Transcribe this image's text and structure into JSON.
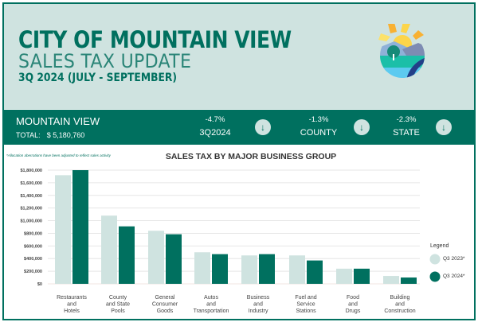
{
  "header": {
    "title": "CITY OF MOUNTAIN VIEW",
    "subtitle": "SALES TAX UPDATE",
    "period": "3Q 2024 (JULY - SEPTEMBER)",
    "logo": "city-logo-sun-hills-tree-road"
  },
  "summary": {
    "name": "MOUNTAIN VIEW",
    "total_label": "TOTAL:",
    "total_value": "$ 5,180,760",
    "metrics": [
      {
        "value": "-4.7%",
        "label": "3Q2024",
        "icon": "arrow-down-icon"
      },
      {
        "value": "-1.3%",
        "label": "COUNTY",
        "icon": "arrow-down-icon"
      },
      {
        "value": "-2.3%",
        "label": "STATE",
        "icon": "arrow-down-icon"
      }
    ]
  },
  "colors": {
    "accent": "#00705f",
    "light": "#cfe3e0",
    "header_bg": "#cfe3e0"
  },
  "chart_data": {
    "type": "bar",
    "title": "SALES TAX BY MAJOR BUSINESS GROUP",
    "note": "*Allocation aberrations have been adjusted to reflect sales activity",
    "categories": [
      [
        "Restaurants",
        "and",
        "Hotels"
      ],
      [
        "County",
        "and State",
        "Pools"
      ],
      [
        "General",
        "Consumer",
        "Goods"
      ],
      [
        "Autos",
        "and",
        "Transportation"
      ],
      [
        "Business",
        "and",
        "Industry"
      ],
      [
        "Fuel and",
        "Service",
        "Stations"
      ],
      [
        "Food",
        "and",
        "Drugs"
      ],
      [
        "Building",
        "and",
        "Construction"
      ]
    ],
    "series": [
      {
        "name": "Q3 2023*",
        "color": "#cfe3e0",
        "values": [
          1720000,
          1080000,
          840000,
          500000,
          450000,
          450000,
          240000,
          125000
        ]
      },
      {
        "name": "Q3 2024*",
        "color": "#00705f",
        "values": [
          1800000,
          910000,
          785000,
          470000,
          470000,
          370000,
          240000,
          100000
        ]
      }
    ],
    "ylim": [
      0,
      1800000
    ],
    "yticks": [
      "$0",
      "$200,000",
      "$400,000",
      "$600,000",
      "$800,000",
      "$1,000,000",
      "$1,200,000",
      "$1,400,000",
      "$1,600,000",
      "$1,800,000"
    ],
    "grid": true,
    "legend_title": "Legend",
    "legend_position": "right"
  }
}
